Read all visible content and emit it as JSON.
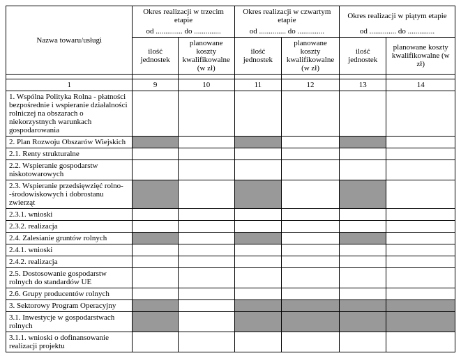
{
  "headers": {
    "name": "Nazwa towaru/usługi",
    "stage3": "Okres realizacji w trzecim etapie",
    "stage4": "Okres realizacji w czwartym etapie",
    "stage5": "Okres realizacji w piątym etapie",
    "period": "od .............. do ..............",
    "units": "ilość jednostek",
    "costs": "planowane koszty kwalifikowalne (w zł)"
  },
  "colnums": [
    "1",
    "9",
    "10",
    "11",
    "12",
    "13",
    "14"
  ],
  "rows": [
    {
      "label": "1. Wspólna Polityka Rolna - płatności bezpośrednie i wspieranie działalności rolniczej na obszarach o niekorzystnych warunkach gospodarowania",
      "shade": [
        false,
        false,
        false,
        false,
        false,
        false
      ]
    },
    {
      "label": "2. Plan Rozwoju Obszarów Wiejskich",
      "shade": [
        true,
        false,
        true,
        false,
        true,
        false
      ]
    },
    {
      "label": "2.1. Renty strukturalne",
      "shade": [
        false,
        false,
        false,
        false,
        false,
        false
      ]
    },
    {
      "label": "2.2. Wspieranie gospodarstw niskotowarowych",
      "shade": [
        false,
        false,
        false,
        false,
        false,
        false
      ]
    },
    {
      "label": "2.3. Wspieranie przedsięwzięć rolno- -środowiskowych i dobrostanu zwierząt",
      "shade": [
        true,
        false,
        true,
        false,
        true,
        false
      ]
    },
    {
      "label": "2.3.1. wnioski",
      "shade": [
        false,
        false,
        false,
        false,
        false,
        false
      ]
    },
    {
      "label": "2.3.2. realizacja",
      "shade": [
        false,
        false,
        false,
        false,
        false,
        false
      ]
    },
    {
      "label": "2.4. Zalesianie gruntów rolnych",
      "shade": [
        true,
        false,
        true,
        false,
        true,
        false
      ]
    },
    {
      "label": "2.4.1. wnioski",
      "shade": [
        false,
        false,
        false,
        false,
        false,
        false
      ]
    },
    {
      "label": "2.4.2. realizacja",
      "shade": [
        false,
        false,
        false,
        false,
        false,
        false
      ]
    },
    {
      "label": "2.5. Dostosowanie gospodarstw rolnych do standardów UE",
      "shade": [
        false,
        false,
        false,
        false,
        false,
        false
      ]
    },
    {
      "label": "2.6. Grupy producentów rolnych",
      "shade": [
        false,
        false,
        false,
        false,
        false,
        false
      ]
    },
    {
      "label": "3. Sektorowy Program Operacyjny",
      "shade": [
        true,
        false,
        true,
        true,
        true,
        true
      ]
    },
    {
      "label": "3.1. Inwestycje w gospodarstwach rolnych",
      "shade": [
        true,
        false,
        true,
        true,
        true,
        true
      ]
    },
    {
      "label": "3.1.1. wnioski o dofinansowanie realizacji projektu",
      "shade": [
        false,
        false,
        false,
        false,
        false,
        false
      ]
    }
  ]
}
